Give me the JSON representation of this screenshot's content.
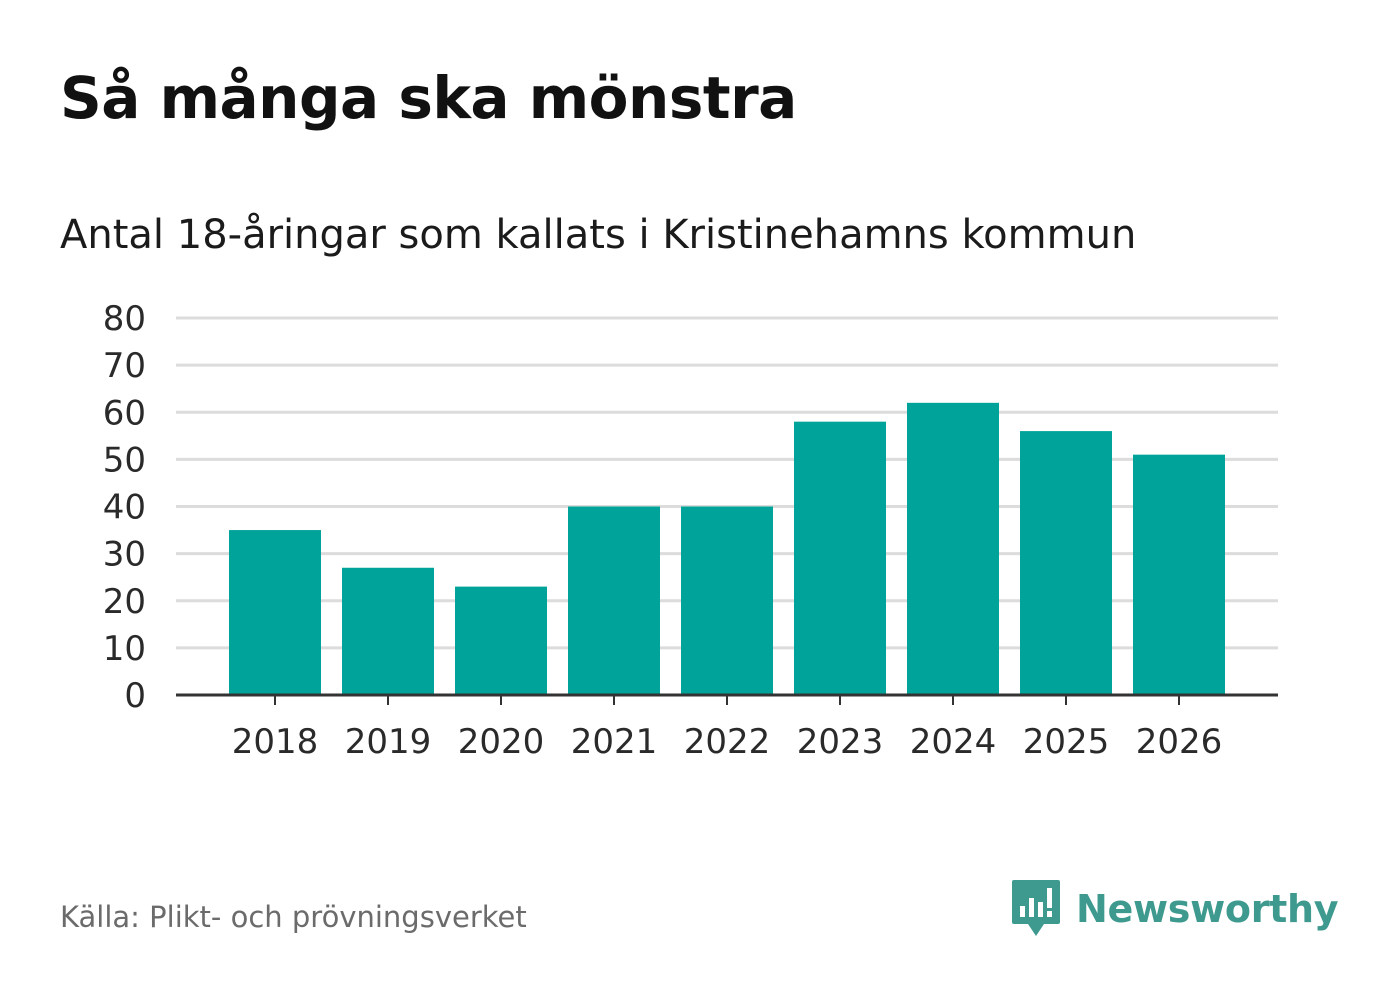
{
  "title": "Så många ska mönstra",
  "subtitle": "Antal 18-åringar som kallats i Kristinehamns kommun",
  "source": "Källa: Plikt- och prövningsverket",
  "brand": {
    "name": "Newsworthy",
    "logo_icon": "newsworthy-chart-bubble-icon",
    "color": "#3e9a8f"
  },
  "colors": {
    "bar": "#00a39a",
    "grid": "#dcdcdc",
    "axis": "#333333"
  },
  "chart_data": {
    "type": "bar",
    "title": "Så många ska mönstra",
    "subtitle": "Antal 18-åringar som kallats i Kristinehamns kommun",
    "xlabel": "",
    "ylabel": "",
    "categories": [
      "2018",
      "2019",
      "2020",
      "2021",
      "2022",
      "2023",
      "2024",
      "2025",
      "2026"
    ],
    "values": [
      35,
      27,
      23,
      40,
      40,
      58,
      62,
      56,
      51
    ],
    "ylim": [
      0,
      80
    ],
    "yticks": [
      0,
      10,
      20,
      30,
      40,
      50,
      60,
      70,
      80
    ],
    "grid": true,
    "legend": "none"
  }
}
